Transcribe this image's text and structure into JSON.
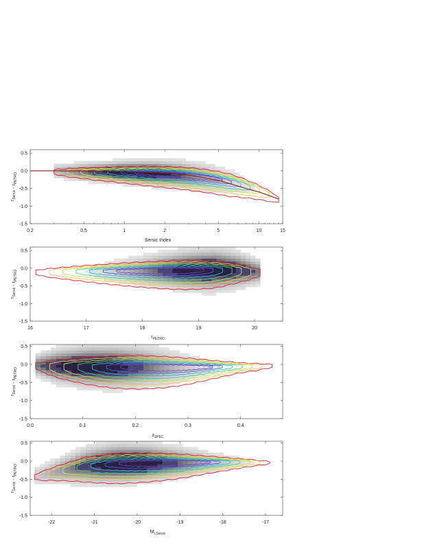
{
  "chart_data": [
    {
      "type": "heatmap",
      "xlabel": "Sersic Index",
      "ylabel": "r_Sersic - r_PETRO",
      "xscale": "log",
      "xlim": [
        0.2,
        15
      ],
      "ylim": [
        -1.5,
        0.6
      ],
      "xticks": [
        0.2,
        0.5,
        1,
        2,
        5,
        10,
        15
      ],
      "xtick_labels": [
        "0.2",
        "0.5",
        "1",
        "2",
        "5",
        "10",
        "15"
      ],
      "yticks": [
        0.5,
        0.0,
        -0.5,
        -1.0,
        -1.5
      ],
      "ytick_labels": [
        "0.5",
        "0.0",
        "-0.5",
        "-1.0",
        "-1.5"
      ],
      "density_ridge": {
        "x": [
          0.3,
          0.6,
          1.0,
          1.5,
          2.5,
          4,
          6,
          10,
          14
        ],
        "y": [
          -0.01,
          -0.03,
          -0.04,
          -0.06,
          -0.1,
          -0.18,
          -0.3,
          -0.55,
          -0.8
        ]
      },
      "density_width": [
        0.12,
        0.14,
        0.16,
        0.18,
        0.2,
        0.22,
        0.24,
        0.2,
        0.16
      ],
      "peak_x": 1.2,
      "model_curve": {
        "x": [
          0.2,
          0.3,
          0.5,
          1,
          2,
          3,
          5,
          8,
          10,
          14
        ],
        "y": [
          0.0,
          0.0,
          -0.005,
          -0.02,
          -0.06,
          -0.12,
          -0.27,
          -0.5,
          -0.6,
          -0.8
        ]
      }
    },
    {
      "type": "heatmap",
      "xlabel": "r_PETRO",
      "ylabel": "r_Sersic - r_PETRO",
      "xlim": [
        16,
        20.5
      ],
      "ylim": [
        -1.5,
        0.6
      ],
      "xticks": [
        16,
        17,
        18,
        19,
        20
      ],
      "xtick_labels": [
        "16",
        "17",
        "18",
        "19",
        "20"
      ],
      "yticks": [
        0.5,
        0.0,
        -0.5,
        -1.0,
        -1.5
      ],
      "ytick_labels": [
        "0.5",
        "0.0",
        "-0.5",
        "-1.0",
        "-1.5"
      ],
      "density_ridge": {
        "x": [
          16.1,
          16.8,
          17.5,
          18.2,
          18.8,
          19.3,
          19.7,
          20.1
        ],
        "y": [
          -0.1,
          -0.08,
          -0.07,
          -0.06,
          -0.05,
          -0.04,
          -0.05,
          -0.1
        ]
      },
      "density_width": [
        0.12,
        0.16,
        0.2,
        0.24,
        0.28,
        0.3,
        0.26,
        0.18
      ],
      "peak_x": 19.1
    },
    {
      "type": "heatmap",
      "xlabel": "z_SPEC",
      "ylabel": "r_Sersic - r_PETRO",
      "xlim": [
        0.0,
        0.48
      ],
      "ylim": [
        -1.5,
        0.55
      ],
      "xticks": [
        0.0,
        0.1,
        0.2,
        0.3,
        0.4
      ],
      "xtick_labels": [
        "0.0",
        "0.1",
        "0.2",
        "0.3",
        "0.4"
      ],
      "yticks": [
        0.5,
        0.0,
        -0.5,
        -1.0,
        -1.5
      ],
      "ytick_labels": [
        "0.5",
        "0.0",
        "-0.5",
        "-1.0",
        "-1.5"
      ],
      "density_ridge": {
        "x": [
          0.01,
          0.05,
          0.1,
          0.15,
          0.2,
          0.25,
          0.3,
          0.35,
          0.4,
          0.46
        ],
        "y": [
          -0.02,
          -0.04,
          -0.05,
          -0.06,
          -0.06,
          -0.07,
          -0.07,
          -0.06,
          -0.05,
          -0.03
        ]
      },
      "density_width": [
        0.16,
        0.24,
        0.28,
        0.3,
        0.3,
        0.28,
        0.24,
        0.18,
        0.12,
        0.08
      ],
      "peak_x": 0.12
    },
    {
      "type": "heatmap",
      "xlabel": "M_r,Sersic",
      "ylabel": "r_Sersic - r_PETRO",
      "xlim": [
        -22.5,
        -16.6
      ],
      "ylim": [
        -1.5,
        0.55
      ],
      "xticks": [
        -22,
        -21,
        -20,
        -19,
        -18,
        -17
      ],
      "xtick_labels": [
        "-22",
        "-21",
        "-20",
        "-19",
        "-18",
        "-17"
      ],
      "yticks": [
        0.5,
        0.0,
        -0.5,
        -1.0,
        -1.5
      ],
      "ytick_labels": [
        "0.5",
        "0.0",
        "-0.5",
        "-1.0",
        "-1.5"
      ],
      "density_ridge": {
        "x": [
          -22.4,
          -21.8,
          -21.2,
          -20.5,
          -19.8,
          -19.0,
          -18.2,
          -17.4,
          -16.9
        ],
        "y": [
          -0.42,
          -0.25,
          -0.12,
          -0.06,
          -0.04,
          -0.03,
          -0.02,
          -0.02,
          -0.03
        ]
      },
      "density_width": [
        0.14,
        0.2,
        0.26,
        0.28,
        0.26,
        0.22,
        0.16,
        0.1,
        0.06
      ],
      "peak_x": -20.2
    }
  ],
  "colors": {
    "contour_outer": "#e0202a",
    "contour_2": "#f4c84a",
    "contour_3": "#bfe34e",
    "contour_4": "#3ccf8c",
    "contour_5": "#32b5d8",
    "contour_6": "#4a5fd8",
    "contour_7": "#6a40c0",
    "model_curve": "#8b1a1a",
    "frame": "#555555"
  }
}
